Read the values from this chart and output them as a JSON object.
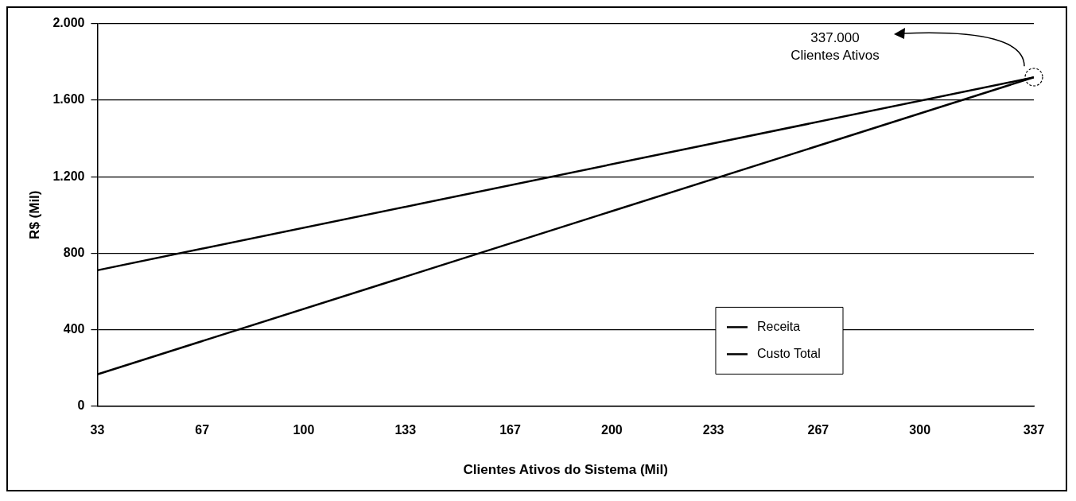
{
  "chart_data": {
    "type": "line",
    "xlabel": "Clientes Ativos do Sistema (Mil)",
    "ylabel": "R$ (Mil)",
    "series": [
      {
        "name": "Receita",
        "color": "#000000",
        "values": [
          165,
          1720
        ]
      },
      {
        "name": "Custo Total",
        "color": "#000000",
        "values": [
          710,
          1720
        ]
      }
    ],
    "x": [
      33,
      337
    ],
    "xlim": [
      33,
      337
    ],
    "xticks": [
      33,
      67,
      100,
      133,
      167,
      200,
      233,
      267,
      300,
      337
    ],
    "ylim": [
      0,
      2000
    ],
    "yticks": [
      0,
      400,
      800,
      {
        "value": 1200,
        "label": "1.200"
      },
      {
        "value": 1600,
        "label": "1.600"
      },
      {
        "value": 2000,
        "label": "2.000"
      }
    ],
    "grid": "y",
    "legend": "bottom right",
    "line_style": "solid",
    "annotations": [
      "337.000\nClientes Ativos"
    ]
  }
}
